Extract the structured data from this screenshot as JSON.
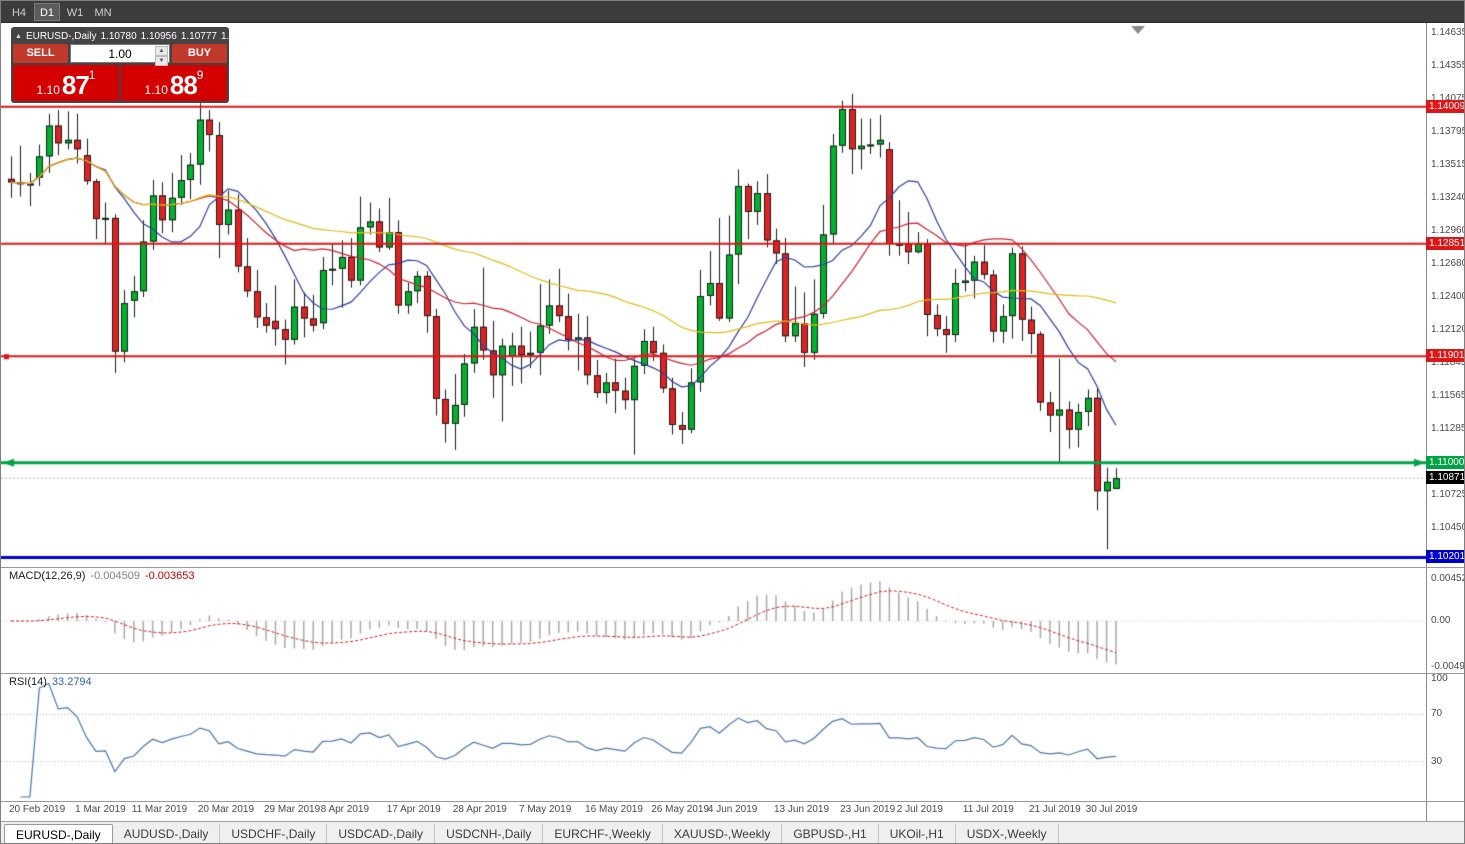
{
  "toolbar": {
    "timeframes": [
      "H4",
      "D1",
      "W1",
      "MN"
    ],
    "active": "D1"
  },
  "info_bar": {
    "symbol_label": "EURUSD-,Daily",
    "open": "1.10780",
    "high": "1.10956",
    "low": "1.10777",
    "close": "1.10871"
  },
  "trade_panel": {
    "sell_label": "SELL",
    "buy_label": "BUY",
    "volume": "1.00",
    "sell_price": {
      "prefix": "1.10",
      "big": "87",
      "sup": "1"
    },
    "buy_price": {
      "prefix": "1.10",
      "big": "88",
      "sup": "9"
    }
  },
  "indicators": {
    "macd": {
      "label": "MACD(12,26,9)",
      "value_main": "-0.004509",
      "value_signal": "-0.003653",
      "axis": [
        "0.004524",
        "0.00",
        "-0.00494"
      ]
    },
    "rsi": {
      "label": "RSI(14)",
      "value": "33.2794",
      "axis": [
        "100",
        "70",
        "30"
      ]
    }
  },
  "price_axis": {
    "ticks": [
      "1.14635",
      "1.14355",
      "1.14075",
      "1.13795",
      "1.13515",
      "1.13240",
      "1.12960",
      "1.12680",
      "1.12400",
      "1.12120",
      "1.11845",
      "1.11565",
      "1.11285",
      "1.10725",
      "1.10450"
    ],
    "badges": [
      {
        "value": "1.14009",
        "color": "#e01515"
      },
      {
        "value": "1.12851",
        "color": "#e01515"
      },
      {
        "value": "1.11901",
        "color": "#e01515"
      },
      {
        "value": "1.11000",
        "color": "#00a344"
      },
      {
        "value": "1.10871",
        "color": "#000000"
      },
      {
        "value": "1.10201",
        "color": "#0000cd"
      }
    ]
  },
  "tabs": [
    {
      "label": "EURUSD-,Daily",
      "active": true
    },
    {
      "label": "AUDUSD-,Daily",
      "active": false
    },
    {
      "label": "USDCHF-,Daily",
      "active": false
    },
    {
      "label": "USDCAD-,Daily",
      "active": false
    },
    {
      "label": "USDCNH-,Daily",
      "active": false
    },
    {
      "label": "EURCHF-,Weekly",
      "active": false
    },
    {
      "label": "XAUUSD-,Weekly",
      "active": false
    },
    {
      "label": "GBPUSD-,H1",
      "active": false
    },
    {
      "label": "UKOil-,H1",
      "active": false
    },
    {
      "label": "USDX-,Weekly",
      "active": false
    }
  ],
  "chart_data": {
    "type": "candlestick",
    "symbol": "EURUSD-",
    "timeframe": "Daily",
    "ylim": [
      1.1012,
      1.147
    ],
    "current_price": 1.10871,
    "colors": {
      "bull": "#00b22c",
      "bear": "#df2323",
      "wick": "#1a1a1a"
    },
    "moving_averages": [
      {
        "type": "sma",
        "period": 10,
        "color": "#2d3e9e"
      },
      {
        "type": "sma",
        "period": 20,
        "color": "#cc2233"
      },
      {
        "type": "sma",
        "period": 50,
        "color": "#e0bb17"
      }
    ],
    "hlines": [
      {
        "price": 1.14009,
        "color": "#e01515",
        "width": 2
      },
      {
        "price": 1.12851,
        "color": "#e01515",
        "width": 2
      },
      {
        "price": 1.11901,
        "color": "#e01515",
        "width": 2
      },
      {
        "price": 1.11,
        "color": "#00a344",
        "width": 3
      },
      {
        "price": 1.10201,
        "color": "#0000cd",
        "width": 3
      }
    ],
    "macd": {
      "fast": 12,
      "slow": 26,
      "signal": 9,
      "histogram_color": "#a9a9a9",
      "signal_color": "#d02020"
    },
    "rsi": {
      "period": 14,
      "color": "#4a76a8",
      "levels": [
        70,
        30
      ]
    },
    "date_labels": [
      {
        "index": 0,
        "label": "20 Feb 2019"
      },
      {
        "index": 7,
        "label": "1 Mar 2019"
      },
      {
        "index": 13,
        "label": "11 Mar 2019"
      },
      {
        "index": 20,
        "label": "20 Mar 2019"
      },
      {
        "index": 27,
        "label": "29 Mar 2019"
      },
      {
        "index": 33,
        "label": "8 Apr 2019"
      },
      {
        "index": 40,
        "label": "17 Apr 2019"
      },
      {
        "index": 47,
        "label": "28 Apr 2019"
      },
      {
        "index": 54,
        "label": "7 May 2019"
      },
      {
        "index": 61,
        "label": "16 May 2019"
      },
      {
        "index": 68,
        "label": "26 May 2019"
      },
      {
        "index": 74,
        "label": "4 Jun 2019"
      },
      {
        "index": 81,
        "label": "13 Jun 2019"
      },
      {
        "index": 88,
        "label": "23 Jun 2019"
      },
      {
        "index": 94,
        "label": "2 Jul 2019"
      },
      {
        "index": 101,
        "label": "11 Jul 2019"
      },
      {
        "index": 108,
        "label": "21 Jul 2019"
      },
      {
        "index": 114,
        "label": "30 Jul 2019"
      }
    ],
    "candles": [
      [
        1.134,
        1.1359,
        1.1324,
        1.1337
      ],
      [
        1.1337,
        1.1368,
        1.1325,
        1.1336
      ],
      [
        1.1336,
        1.1345,
        1.1317,
        1.1335
      ],
      [
        1.1341,
        1.1369,
        1.1334,
        1.1359
      ],
      [
        1.1359,
        1.1395,
        1.1345,
        1.1385
      ],
      [
        1.1385,
        1.1398,
        1.136,
        1.137
      ],
      [
        1.137,
        1.1397,
        1.1365,
        1.1373
      ],
      [
        1.1373,
        1.1395,
        1.1353,
        1.1365
      ],
      [
        1.136,
        1.1374,
        1.1335,
        1.1338
      ],
      [
        1.1338,
        1.134,
        1.1289,
        1.1306
      ],
      [
        1.1306,
        1.132,
        1.1285,
        1.1307
      ],
      [
        1.1307,
        1.131,
        1.1176,
        1.1194
      ],
      [
        1.1194,
        1.1246,
        1.1185,
        1.1235
      ],
      [
        1.1237,
        1.1258,
        1.1223,
        1.1245
      ],
      [
        1.1245,
        1.1305,
        1.124,
        1.1287
      ],
      [
        1.1287,
        1.1339,
        1.128,
        1.1326
      ],
      [
        1.1326,
        1.1337,
        1.1294,
        1.1305
      ],
      [
        1.1305,
        1.1345,
        1.1295,
        1.1324
      ],
      [
        1.1324,
        1.136,
        1.1318,
        1.1339
      ],
      [
        1.1339,
        1.1362,
        1.1323,
        1.1352
      ],
      [
        1.1352,
        1.1404,
        1.1335,
        1.139
      ],
      [
        1.139,
        1.1398,
        1.1363,
        1.1377
      ],
      [
        1.1377,
        1.1388,
        1.1273,
        1.1301
      ],
      [
        1.1301,
        1.133,
        1.1293,
        1.1314
      ],
      [
        1.1314,
        1.1327,
        1.1261,
        1.1266
      ],
      [
        1.1266,
        1.129,
        1.124,
        1.1245
      ],
      [
        1.1245,
        1.1263,
        1.1214,
        1.1223
      ],
      [
        1.1223,
        1.1235,
        1.121,
        1.1216
      ],
      [
        1.122,
        1.125,
        1.1199,
        1.1213
      ],
      [
        1.1213,
        1.1221,
        1.1183,
        1.1204
      ],
      [
        1.1204,
        1.1255,
        1.12,
        1.1232
      ],
      [
        1.1232,
        1.1244,
        1.1206,
        1.1222
      ],
      [
        1.1222,
        1.1242,
        1.1211,
        1.1216
      ],
      [
        1.1218,
        1.1274,
        1.1213,
        1.1263
      ],
      [
        1.1263,
        1.1285,
        1.125,
        1.1264
      ],
      [
        1.1264,
        1.1288,
        1.1231,
        1.1274
      ],
      [
        1.1274,
        1.129,
        1.1248,
        1.1254
      ],
      [
        1.1254,
        1.1325,
        1.125,
        1.1299
      ],
      [
        1.1299,
        1.132,
        1.1293,
        1.1304
      ],
      [
        1.1304,
        1.1315,
        1.1278,
        1.1282
      ],
      [
        1.1282,
        1.1324,
        1.128,
        1.1295
      ],
      [
        1.1295,
        1.1305,
        1.1226,
        1.1233
      ],
      [
        1.1233,
        1.1252,
        1.1226,
        1.1245
      ],
      [
        1.1245,
        1.1262,
        1.1235,
        1.1258
      ],
      [
        1.1258,
        1.1262,
        1.121,
        1.1224
      ],
      [
        1.1224,
        1.123,
        1.114,
        1.1154
      ],
      [
        1.1154,
        1.1162,
        1.1117,
        1.1133
      ],
      [
        1.1133,
        1.1175,
        1.1111,
        1.1149
      ],
      [
        1.1149,
        1.1192,
        1.1139,
        1.1184
      ],
      [
        1.1184,
        1.123,
        1.1176,
        1.1215
      ],
      [
        1.1215,
        1.1265,
        1.1187,
        1.1195
      ],
      [
        1.1195,
        1.122,
        1.1155,
        1.1174
      ],
      [
        1.1174,
        1.1205,
        1.1135,
        1.1199
      ],
      [
        1.119,
        1.121,
        1.1165,
        1.1199
      ],
      [
        1.1199,
        1.1215,
        1.1167,
        1.1191
      ],
      [
        1.1191,
        1.1211,
        1.118,
        1.1193
      ],
      [
        1.1193,
        1.1251,
        1.1174,
        1.1216
      ],
      [
        1.1216,
        1.1255,
        1.1209,
        1.1233
      ],
      [
        1.1233,
        1.1264,
        1.1219,
        1.1224
      ],
      [
        1.1224,
        1.1243,
        1.1195,
        1.1204
      ],
      [
        1.1204,
        1.1226,
        1.1178,
        1.1206
      ],
      [
        1.1206,
        1.1224,
        1.1166,
        1.1174
      ],
      [
        1.1174,
        1.1187,
        1.1155,
        1.1159
      ],
      [
        1.1159,
        1.1176,
        1.115,
        1.1168
      ],
      [
        1.1168,
        1.1188,
        1.1142,
        1.1161
      ],
      [
        1.1161,
        1.1172,
        1.1145,
        1.1153
      ],
      [
        1.1153,
        1.1188,
        1.1107,
        1.1182
      ],
      [
        1.1182,
        1.1213,
        1.1175,
        1.1203
      ],
      [
        1.1203,
        1.1215,
        1.1186,
        1.1193
      ],
      [
        1.1193,
        1.12,
        1.1159,
        1.1163
      ],
      [
        1.1163,
        1.1172,
        1.1124,
        1.1132
      ],
      [
        1.1132,
        1.1143,
        1.1116,
        1.1128
      ],
      [
        1.1128,
        1.118,
        1.1125,
        1.1168
      ],
      [
        1.1168,
        1.1263,
        1.116,
        1.1241
      ],
      [
        1.1241,
        1.1279,
        1.1233,
        1.1252
      ],
      [
        1.1252,
        1.1307,
        1.122,
        1.1222
      ],
      [
        1.1222,
        1.1309,
        1.1219,
        1.1276
      ],
      [
        1.1276,
        1.1348,
        1.1251,
        1.1334
      ],
      [
        1.1334,
        1.1336,
        1.1289,
        1.1312
      ],
      [
        1.1312,
        1.1338,
        1.1301,
        1.1328
      ],
      [
        1.1328,
        1.1344,
        1.1282,
        1.1288
      ],
      [
        1.1288,
        1.1298,
        1.1268,
        1.1277
      ],
      [
        1.1277,
        1.129,
        1.1202,
        1.1207
      ],
      [
        1.1207,
        1.1249,
        1.1202,
        1.1218
      ],
      [
        1.1218,
        1.1244,
        1.1181,
        1.1193
      ],
      [
        1.1193,
        1.1255,
        1.1187,
        1.1226
      ],
      [
        1.1226,
        1.1318,
        1.1222,
        1.1293
      ],
      [
        1.1293,
        1.1378,
        1.1285,
        1.1368
      ],
      [
        1.1368,
        1.1406,
        1.1362,
        1.1399
      ],
      [
        1.1399,
        1.1412,
        1.1344,
        1.1365
      ],
      [
        1.1365,
        1.1391,
        1.1348,
        1.1368
      ],
      [
        1.1368,
        1.1391,
        1.1361,
        1.1369
      ],
      [
        1.1369,
        1.1394,
        1.1358,
        1.1373
      ],
      [
        1.1365,
        1.1371,
        1.1275,
        1.1285
      ],
      [
        1.1285,
        1.1322,
        1.1275,
        1.1285
      ],
      [
        1.1285,
        1.1312,
        1.1268,
        1.1278
      ],
      [
        1.1278,
        1.1295,
        1.1277,
        1.1285
      ],
      [
        1.1285,
        1.1289,
        1.1207,
        1.1225
      ],
      [
        1.1225,
        1.1234,
        1.1207,
        1.1213
      ],
      [
        1.1213,
        1.1224,
        1.1193,
        1.1208
      ],
      [
        1.1208,
        1.1264,
        1.1202,
        1.1252
      ],
      [
        1.1252,
        1.1286,
        1.1245,
        1.1254
      ],
      [
        1.1254,
        1.1275,
        1.1239,
        1.127
      ],
      [
        1.127,
        1.1284,
        1.1255,
        1.1259
      ],
      [
        1.1259,
        1.1263,
        1.1202,
        1.1211
      ],
      [
        1.1211,
        1.1234,
        1.1201,
        1.1224
      ],
      [
        1.1224,
        1.1282,
        1.1205,
        1.1277
      ],
      [
        1.1277,
        1.1283,
        1.1203,
        1.1221
      ],
      [
        1.1221,
        1.1232,
        1.1192,
        1.1209
      ],
      [
        1.1209,
        1.1211,
        1.1144,
        1.1151
      ],
      [
        1.1151,
        1.116,
        1.1126,
        1.114
      ],
      [
        1.114,
        1.1188,
        1.1101,
        1.1145
      ],
      [
        1.1145,
        1.1152,
        1.1112,
        1.1128
      ],
      [
        1.1128,
        1.115,
        1.1113,
        1.1143
      ],
      [
        1.1143,
        1.1162,
        1.1131,
        1.1155
      ],
      [
        1.1155,
        1.1163,
        1.106,
        1.1076
      ],
      [
        1.1076,
        1.1096,
        1.1027,
        1.1084
      ],
      [
        1.1078,
        1.10956,
        1.10777,
        1.10871
      ]
    ]
  }
}
